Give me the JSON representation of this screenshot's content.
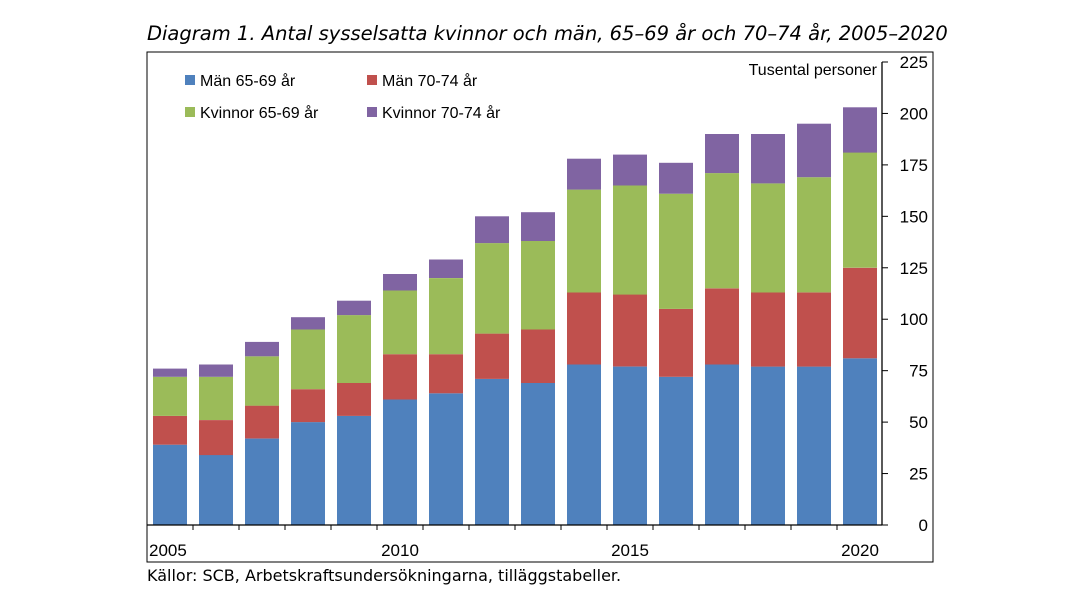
{
  "title": "Diagram 1. Antal sysselsatta kvinnor och män, 65–69 år och 70–74 år, 2005–2020",
  "source": "Källor: SCB, Arbetskraftsundersökningarna, tilläggstabeller.",
  "chart_data": {
    "type": "bar",
    "stacked": true,
    "categories": [
      "2005",
      "2006",
      "2007",
      "2008",
      "2009",
      "2010",
      "2011",
      "2012",
      "2013",
      "2014",
      "2015",
      "2016",
      "2017",
      "2018",
      "2019",
      "2020"
    ],
    "x_tick_labels": [
      "2005",
      "2010",
      "2015",
      "2020"
    ],
    "y_unit_label": "Tusental personer",
    "ylim": [
      0,
      225
    ],
    "y_ticks": [
      "0",
      "25",
      "50",
      "75",
      "100",
      "125",
      "150",
      "175",
      "200",
      "225"
    ],
    "y_axis_side": "right",
    "legend_position": "top-left",
    "grid": false,
    "series": [
      {
        "name": "Män 65-69 år",
        "color": "#4f81bd",
        "values": [
          39,
          34,
          42,
          50,
          53,
          61,
          64,
          71,
          69,
          78,
          77,
          72,
          78,
          77,
          77,
          81
        ]
      },
      {
        "name": "Män 70-74 år",
        "color": "#c0504d",
        "values": [
          14,
          17,
          16,
          16,
          16,
          22,
          19,
          22,
          26,
          35,
          35,
          33,
          37,
          36,
          36,
          44
        ]
      },
      {
        "name": "Kvinnor 65-69 år",
        "color": "#9bbb59",
        "values": [
          19,
          21,
          24,
          29,
          33,
          31,
          37,
          44,
          43,
          50,
          53,
          56,
          56,
          53,
          56,
          56
        ]
      },
      {
        "name": "Kvinnor 70-74 år",
        "color": "#8064a2",
        "values": [
          4,
          6,
          7,
          6,
          7,
          8,
          9,
          13,
          14,
          15,
          15,
          15,
          19,
          24,
          26,
          22
        ]
      }
    ]
  }
}
